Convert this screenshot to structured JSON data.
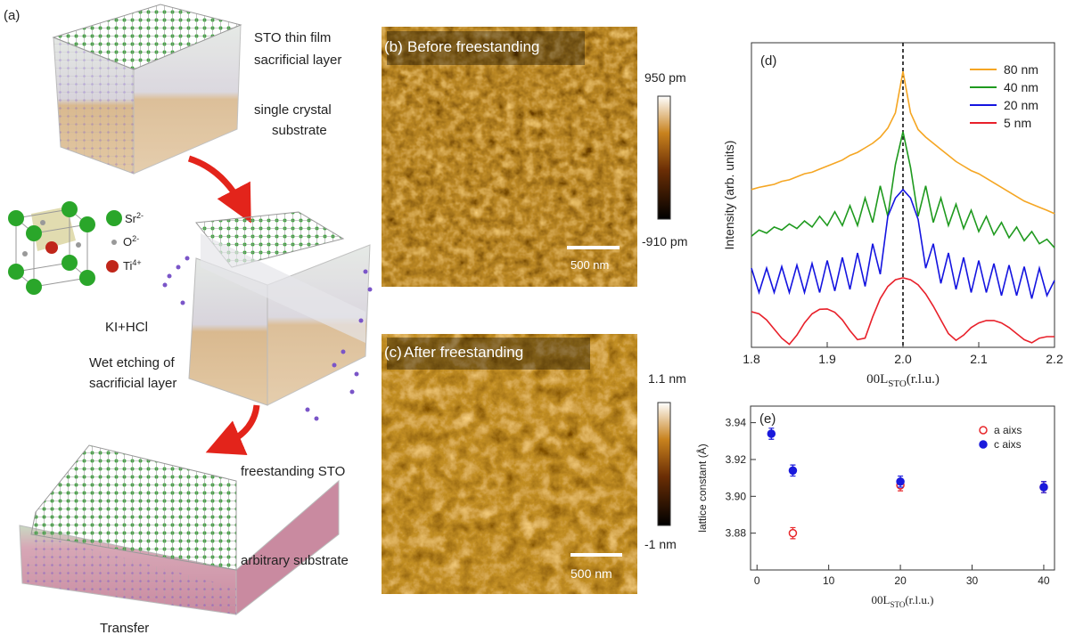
{
  "panel_a": {
    "label": "(a)",
    "film": "STO thin film",
    "sacrificial": "sacrificial layer",
    "substrate_1": "single crystal",
    "substrate_2": "substrate",
    "legend": [
      {
        "ion": "Sr",
        "charge": "2-"
      },
      {
        "ion": "O",
        "charge": "2-"
      },
      {
        "ion": "Ti",
        "charge": "4+"
      }
    ],
    "etchant": "KI+HCl",
    "etching_1": "Wet etching of",
    "etching_2": "sacrificial layer",
    "freestanding": "freestanding STO",
    "arbitrary": "arbitrary substrate",
    "transfer": "Transfer"
  },
  "panel_b": {
    "label": "(b)",
    "title": "Before freestanding",
    "colorbar_max": "950 pm",
    "colorbar_min": "-910 pm",
    "scale_bar": "500 nm"
  },
  "panel_c": {
    "label": "(c)",
    "title": "After freestanding",
    "colorbar_max": "1.1 nm",
    "colorbar_min": "-1 nm",
    "scale_bar": "500 nm"
  },
  "chart_data": [
    {
      "type": "line",
      "label": "(d)",
      "x": [
        1.8,
        1.81,
        1.82,
        1.83,
        1.84,
        1.85,
        1.86,
        1.87,
        1.88,
        1.89,
        1.9,
        1.91,
        1.92,
        1.93,
        1.94,
        1.95,
        1.96,
        1.97,
        1.98,
        1.99,
        2.0,
        2.01,
        2.02,
        2.03,
        2.04,
        2.05,
        2.06,
        2.07,
        2.08,
        2.09,
        2.1,
        2.11,
        2.12,
        2.13,
        2.14,
        2.15,
        2.16,
        2.17,
        2.18,
        2.19,
        2.2
      ],
      "xlim": [
        1.8,
        2.2
      ],
      "xticks": [
        1.8,
        1.9,
        {
          "value": 2,
          "label": "2.0"
        },
        2.1,
        2.2
      ],
      "xlabel": {
        "main": "00L",
        "sub": "STO",
        "rest": "(r.l.u.)"
      },
      "ylabel": "Intensity (arb. units)",
      "ylim": [
        0,
        10
      ],
      "vline": 2,
      "legend": "upper right",
      "series": [
        {
          "name": "80 nm",
          "color": "#f5a623",
          "values": [
            5.18,
            5.25,
            5.3,
            5.35,
            5.45,
            5.5,
            5.6,
            5.7,
            5.75,
            5.85,
            5.95,
            6.05,
            6.15,
            6.3,
            6.4,
            6.55,
            6.7,
            6.9,
            7.2,
            7.7,
            9.06,
            7.7,
            7.15,
            6.9,
            6.7,
            6.5,
            6.3,
            6.1,
            5.95,
            5.8,
            5.7,
            5.55,
            5.4,
            5.25,
            5.1,
            4.95,
            4.8,
            4.7,
            4.6,
            4.5,
            4.39
          ]
        },
        {
          "name": "40 nm",
          "color": "#1f9a1f",
          "values": [
            3.65,
            3.85,
            3.75,
            3.95,
            3.85,
            4.05,
            3.9,
            4.15,
            3.95,
            4.3,
            4.0,
            4.45,
            4.0,
            4.65,
            4.0,
            4.9,
            4.1,
            5.3,
            4.3,
            6.0,
            7.08,
            5.9,
            4.3,
            5.3,
            4.1,
            4.9,
            4.0,
            4.7,
            3.9,
            4.5,
            3.8,
            4.3,
            3.7,
            4.1,
            3.6,
            3.95,
            3.5,
            3.8,
            3.4,
            3.55,
            3.27
          ]
        },
        {
          "name": "20 nm",
          "color": "#1414e0",
          "values": [
            2.6,
            1.8,
            2.6,
            1.8,
            2.65,
            1.8,
            2.7,
            1.8,
            2.75,
            1.8,
            2.85,
            1.85,
            2.95,
            1.9,
            3.1,
            2.0,
            3.4,
            2.4,
            4.3,
            4.9,
            5.18,
            4.9,
            4.2,
            2.6,
            3.4,
            2.1,
            3.1,
            1.9,
            2.95,
            1.8,
            2.85,
            1.8,
            2.75,
            1.7,
            2.7,
            1.7,
            2.65,
            1.6,
            2.6,
            1.7,
            2.2
          ]
        },
        {
          "name": "5 nm",
          "color": "#e8202a",
          "values": [
            1.17,
            1.1,
            0.9,
            0.6,
            0.3,
            0.1,
            0.4,
            0.8,
            1.1,
            1.25,
            1.26,
            1.15,
            0.9,
            0.55,
            0.25,
            0.3,
            1.0,
            1.6,
            2.0,
            2.22,
            2.28,
            2.22,
            2.05,
            1.75,
            1.35,
            0.9,
            0.45,
            0.23,
            0.4,
            0.65,
            0.8,
            0.88,
            0.88,
            0.8,
            0.65,
            0.45,
            0.25,
            0.15,
            0.3,
            0.35,
            0.35
          ]
        }
      ]
    },
    {
      "type": "scatter",
      "label": "(e)",
      "xlim": [
        -0.9,
        41.5
      ],
      "xticks": [
        0,
        10,
        20,
        30,
        40
      ],
      "xlabel": {
        "main": "00L",
        "sub": "STO",
        "rest": "(r.l.u.)"
      },
      "ylabel": "lattice constant (Å)",
      "ylim": [
        3.86,
        3.949
      ],
      "yticks": [
        3.88,
        {
          "value": 3.9,
          "label": "3.90"
        },
        3.92,
        3.94
      ],
      "legend": "upper right",
      "series": [
        {
          "name": "a aixs",
          "color": "#e8262a",
          "marker": "open",
          "x": [
            5,
            20,
            40
          ],
          "values": [
            3.88,
            3.906,
            3.905
          ],
          "errors": [
            0.003,
            0.003,
            0.003
          ]
        },
        {
          "name": "c aixs",
          "color": "#1a1adc",
          "marker": "filled",
          "x": [
            2,
            5,
            20,
            40
          ],
          "values": [
            3.934,
            3.914,
            3.908,
            3.905
          ],
          "errors": [
            0.003,
            0.003,
            0.003,
            0.003
          ]
        }
      ]
    }
  ]
}
